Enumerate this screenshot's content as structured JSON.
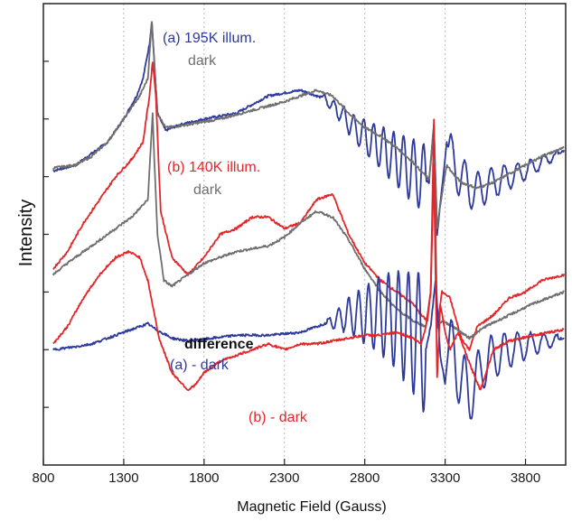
{
  "chart_data": {
    "type": "line",
    "xlabel": "Magnetic Field (Gauss)",
    "ylabel": "Intensity",
    "xlim": [
      800,
      4050
    ],
    "x_ticks": [
      800,
      1300,
      1800,
      2300,
      2800,
      3300,
      3800
    ],
    "grid_lines_at": [
      1300,
      1800,
      2300,
      2800,
      3300,
      3800
    ],
    "y_ticks": "unlabeled",
    "colors": {
      "blue": "#2e3a9c",
      "red": "#e4262a",
      "gray": "#6f6f6f",
      "axis": "#222222"
    },
    "annotations": [
      {
        "text": "(a) 195K illum.",
        "color": "#2e3a9c"
      },
      {
        "text": "dark",
        "color": "#6f6f6f"
      },
      {
        "text": "(b) 140K illum.",
        "color": "#e4262a"
      },
      {
        "text": "dark",
        "color": "#6f6f6f"
      },
      {
        "text": "difference",
        "color": "#111111"
      },
      {
        "text": "(a) - dark",
        "color": "#2e3a9c"
      },
      {
        "text": "(b) - dark",
        "color": "#e4262a"
      }
    ],
    "series": [
      {
        "color": "#2e3a9c",
        "points": [
          [
            860,
            510
          ],
          [
            1000,
            520
          ],
          [
            1100,
            540
          ],
          [
            1200,
            560
          ],
          [
            1300,
            600
          ],
          [
            1380,
            640
          ],
          [
            1420,
            670
          ],
          [
            1460,
            730
          ],
          [
            1475,
            770
          ],
          [
            1490,
            700
          ],
          [
            1510,
            610
          ],
          [
            1560,
            580
          ],
          [
            1650,
            590
          ],
          [
            1800,
            600
          ],
          [
            2000,
            610
          ],
          [
            2200,
            640
          ],
          [
            2400,
            650
          ],
          [
            2550,
            635
          ],
          [
            2650,
            610
          ],
          [
            2750,
            580
          ],
          [
            2850,
            560
          ],
          [
            2950,
            540
          ],
          [
            3050,
            520
          ],
          [
            3150,
            500
          ],
          [
            3200,
            490
          ],
          [
            3230,
            590
          ],
          [
            3250,
            400
          ],
          [
            3280,
            480
          ],
          [
            3310,
            560
          ],
          [
            3350,
            520
          ],
          [
            3400,
            500
          ],
          [
            3450,
            480
          ],
          [
            3500,
            475
          ],
          [
            3600,
            490
          ],
          [
            3700,
            500
          ],
          [
            3800,
            510
          ],
          [
            3900,
            525
          ],
          [
            4040,
            545
          ]
        ],
        "oscillations": [
          {
            "x0": 2530,
            "x1": 3180,
            "period": 62,
            "a0": 5,
            "a1": 62
          },
          {
            "x0": 3320,
            "x1": 4000,
            "period": 82,
            "a0": 42,
            "a1": 6
          }
        ]
      },
      {
        "color": "#6f6f6f",
        "points": [
          [
            860,
            515
          ],
          [
            1000,
            520
          ],
          [
            1100,
            535
          ],
          [
            1200,
            560
          ],
          [
            1300,
            600
          ],
          [
            1400,
            640
          ],
          [
            1450,
            670
          ],
          [
            1475,
            770
          ],
          [
            1490,
            700
          ],
          [
            1510,
            610
          ],
          [
            1560,
            585
          ],
          [
            1700,
            590
          ],
          [
            1900,
            600
          ],
          [
            2100,
            615
          ],
          [
            2300,
            630
          ],
          [
            2500,
            650
          ],
          [
            2600,
            640
          ],
          [
            2700,
            610
          ],
          [
            2800,
            585
          ],
          [
            2900,
            570
          ],
          [
            3000,
            550
          ],
          [
            3100,
            525
          ],
          [
            3150,
            510
          ],
          [
            3200,
            495
          ],
          [
            3230,
            590
          ],
          [
            3250,
            410
          ],
          [
            3280,
            470
          ],
          [
            3310,
            520
          ],
          [
            3350,
            505
          ],
          [
            3400,
            490
          ],
          [
            3500,
            480
          ],
          [
            3600,
            490
          ],
          [
            3700,
            505
          ],
          [
            3800,
            520
          ],
          [
            3900,
            535
          ],
          [
            4040,
            550
          ]
        ]
      },
      {
        "color": "#e4262a",
        "points": [
          [
            860,
            340
          ],
          [
            950,
            370
          ],
          [
            1050,
            420
          ],
          [
            1150,
            460
          ],
          [
            1250,
            500
          ],
          [
            1350,
            530
          ],
          [
            1420,
            560
          ],
          [
            1460,
            640
          ],
          [
            1480,
            700
          ],
          [
            1500,
            640
          ],
          [
            1530,
            440
          ],
          [
            1600,
            360
          ],
          [
            1700,
            330
          ],
          [
            1800,
            360
          ],
          [
            1900,
            400
          ],
          [
            2000,
            410
          ],
          [
            2100,
            430
          ],
          [
            2200,
            430
          ],
          [
            2300,
            410
          ],
          [
            2400,
            420
          ],
          [
            2500,
            460
          ],
          [
            2600,
            470
          ],
          [
            2700,
            400
          ],
          [
            2800,
            350
          ],
          [
            2900,
            320
          ],
          [
            3000,
            300
          ],
          [
            3100,
            280
          ],
          [
            3150,
            260
          ],
          [
            3190,
            250
          ],
          [
            3210,
            300
          ],
          [
            3230,
            600
          ],
          [
            3250,
            240
          ],
          [
            3280,
            300
          ],
          [
            3330,
            290
          ],
          [
            3400,
            220
          ],
          [
            3450,
            200
          ],
          [
            3500,
            240
          ],
          [
            3600,
            260
          ],
          [
            3700,
            290
          ],
          [
            3800,
            300
          ],
          [
            3900,
            320
          ],
          [
            4040,
            330
          ]
        ]
      },
      {
        "color": "#6f6f6f",
        "points": [
          [
            860,
            330
          ],
          [
            950,
            350
          ],
          [
            1050,
            370
          ],
          [
            1150,
            390
          ],
          [
            1250,
            410
          ],
          [
            1350,
            430
          ],
          [
            1450,
            460
          ],
          [
            1470,
            560
          ],
          [
            1480,
            610
          ],
          [
            1490,
            530
          ],
          [
            1510,
            400
          ],
          [
            1550,
            320
          ],
          [
            1600,
            310
          ],
          [
            1700,
            330
          ],
          [
            1800,
            350
          ],
          [
            1900,
            360
          ],
          [
            2000,
            370
          ],
          [
            2200,
            380
          ],
          [
            2300,
            395
          ],
          [
            2400,
            420
          ],
          [
            2500,
            440
          ],
          [
            2600,
            430
          ],
          [
            2700,
            390
          ],
          [
            2800,
            340
          ],
          [
            2900,
            300
          ],
          [
            3000,
            270
          ],
          [
            3100,
            250
          ],
          [
            3180,
            240
          ],
          [
            3210,
            300
          ],
          [
            3230,
            530
          ],
          [
            3250,
            240
          ],
          [
            3280,
            250
          ],
          [
            3350,
            240
          ],
          [
            3450,
            220
          ],
          [
            3550,
            240
          ],
          [
            3700,
            260
          ],
          [
            3850,
            280
          ],
          [
            4040,
            300
          ]
        ]
      },
      {
        "color": "#2e3a9c",
        "points": [
          [
            860,
            200
          ],
          [
            1000,
            205
          ],
          [
            1100,
            210
          ],
          [
            1200,
            220
          ],
          [
            1300,
            230
          ],
          [
            1400,
            240
          ],
          [
            1450,
            245
          ],
          [
            1500,
            235
          ],
          [
            1600,
            220
          ],
          [
            1700,
            215
          ],
          [
            1800,
            218
          ],
          [
            2000,
            225
          ],
          [
            2200,
            225
          ],
          [
            2400,
            230
          ],
          [
            2500,
            240
          ],
          [
            2600,
            250
          ],
          [
            2700,
            260
          ],
          [
            2800,
            260
          ],
          [
            2900,
            260
          ],
          [
            3000,
            250
          ],
          [
            3100,
            230
          ],
          [
            3150,
            220
          ],
          [
            3180,
            200
          ],
          [
            3210,
            240
          ],
          [
            3240,
            320
          ],
          [
            3270,
            190
          ],
          [
            3300,
            140
          ],
          [
            3320,
            200
          ],
          [
            3350,
            190
          ],
          [
            3400,
            150
          ],
          [
            3450,
            120
          ],
          [
            3500,
            150
          ],
          [
            3550,
            180
          ],
          [
            3700,
            200
          ],
          [
            3850,
            210
          ],
          [
            4040,
            220
          ]
        ],
        "oscillations": [
          {
            "x0": 2560,
            "x1": 3180,
            "period": 62,
            "a0": 5,
            "a1": 120
          },
          {
            "x0": 3320,
            "x1": 4000,
            "period": 82,
            "a0": 60,
            "a1": 8
          }
        ]
      },
      {
        "color": "#e4262a",
        "points": [
          [
            860,
            210
          ],
          [
            950,
            240
          ],
          [
            1050,
            290
          ],
          [
            1150,
            330
          ],
          [
            1250,
            360
          ],
          [
            1330,
            370
          ],
          [
            1400,
            360
          ],
          [
            1450,
            320
          ],
          [
            1520,
            220
          ],
          [
            1600,
            160
          ],
          [
            1700,
            130
          ],
          [
            1750,
            140
          ],
          [
            1800,
            160
          ],
          [
            1900,
            180
          ],
          [
            2000,
            190
          ],
          [
            2100,
            200
          ],
          [
            2200,
            210
          ],
          [
            2300,
            200
          ],
          [
            2400,
            210
          ],
          [
            2500,
            210
          ],
          [
            2600,
            215
          ],
          [
            2700,
            220
          ],
          [
            2800,
            225
          ],
          [
            2900,
            225
          ],
          [
            3000,
            230
          ],
          [
            3100,
            220
          ],
          [
            3150,
            210
          ],
          [
            3180,
            240
          ],
          [
            3210,
            300
          ],
          [
            3230,
            520
          ],
          [
            3250,
            150
          ],
          [
            3270,
            280
          ],
          [
            3300,
            230
          ],
          [
            3330,
            200
          ],
          [
            3380,
            230
          ],
          [
            3420,
            200
          ],
          [
            3460,
            170
          ],
          [
            3520,
            130
          ],
          [
            3600,
            200
          ],
          [
            3700,
            215
          ],
          [
            3850,
            225
          ],
          [
            3950,
            230
          ],
          [
            4040,
            235
          ]
        ]
      }
    ]
  }
}
